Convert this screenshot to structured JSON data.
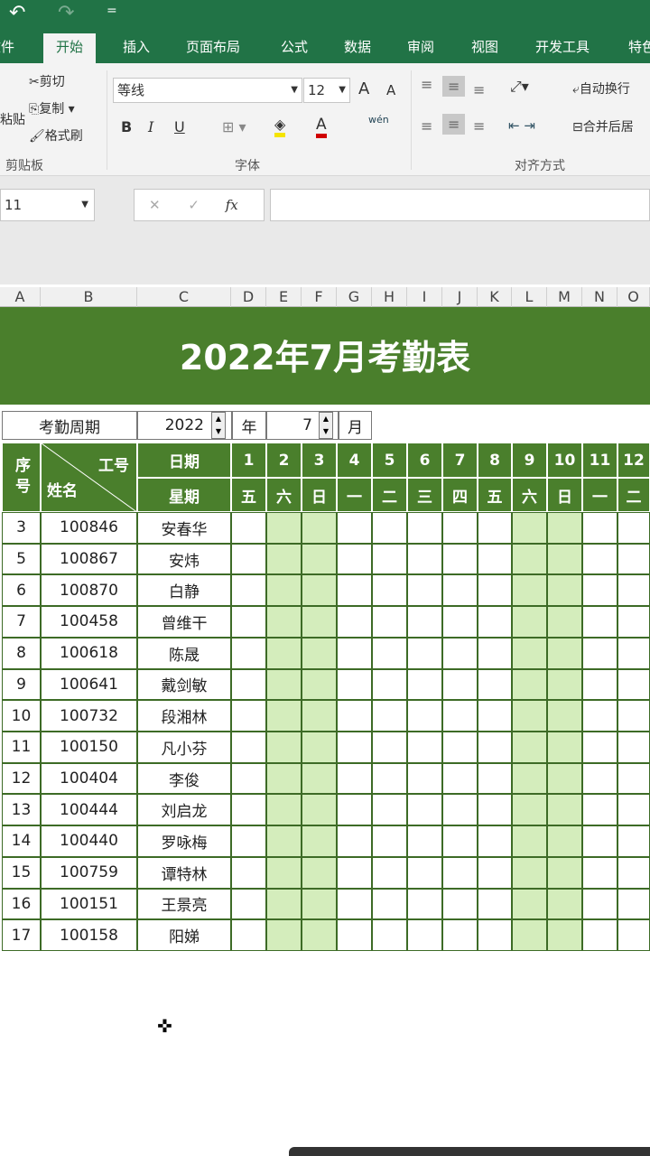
{
  "quick_access": {
    "undo": "↶",
    "redo": "↷",
    "customize": "="
  },
  "tabs": [
    "文件",
    "开始",
    "插入",
    "页面布局",
    "公式",
    "数据",
    "审阅",
    "视图",
    "开发工具",
    "特色"
  ],
  "ribbon": {
    "clipboard": {
      "paste": "粘贴",
      "cut": "剪切",
      "copy": "复制",
      "format_painter": "格式刷",
      "group": "剪贴板"
    },
    "font": {
      "name": "等线",
      "size": "12",
      "grow": "A",
      "shrink": "A",
      "bold": "B",
      "italic": "I",
      "underline": "U",
      "phonetic": "wén",
      "group": "字体",
      "fill_color": "#f5e400",
      "font_color": "#d00000"
    },
    "alignment": {
      "wrap": "自动换行",
      "merge": "合并后居",
      "group": "对齐方式"
    }
  },
  "formula_bar": {
    "name_box": "11",
    "cancel": "✕",
    "enter": "✓",
    "fx": "fx",
    "value": ""
  },
  "columns": [
    "A",
    "B",
    "C",
    "D",
    "E",
    "F",
    "G",
    "H",
    "I",
    "J",
    "K",
    "L",
    "M",
    "N",
    "O"
  ],
  "sheet": {
    "title": "2022年7月考勤表",
    "period_label": "考勤周期",
    "year": "2022",
    "year_unit": "年",
    "month": "7",
    "month_unit": "月",
    "hdr_seq": "序号",
    "hdr_id": "工号",
    "hdr_name": "姓名",
    "hdr_date": "日期",
    "hdr_week": "星期",
    "days": [
      "1",
      "2",
      "3",
      "4",
      "5",
      "6",
      "7",
      "8",
      "9",
      "10",
      "11",
      "12"
    ],
    "weekdays": [
      "五",
      "六",
      "日",
      "一",
      "二",
      "三",
      "四",
      "五",
      "六",
      "日",
      "一",
      "二"
    ],
    "weekend_days": [
      2,
      3,
      9,
      10
    ],
    "rows": [
      [
        "3",
        "100846",
        "安春华"
      ],
      [
        "5",
        "100867",
        "安炜"
      ],
      [
        "6",
        "100870",
        "白静"
      ],
      [
        "7",
        "100458",
        "曾维干"
      ],
      [
        "8",
        "100618",
        "陈晟"
      ],
      [
        "9",
        "100641",
        "戴剑敏"
      ],
      [
        "10",
        "100732",
        "段湘林"
      ],
      [
        "11",
        "100150",
        "凡小芬"
      ],
      [
        "12",
        "100404",
        "李俊"
      ],
      [
        "13",
        "100444",
        "刘启龙"
      ],
      [
        "14",
        "100440",
        "罗咏梅"
      ],
      [
        "15",
        "100759",
        "谭特林"
      ],
      [
        "16",
        "100151",
        "王景亮"
      ],
      [
        "17",
        "100158",
        "阳娣"
      ]
    ]
  },
  "colors": {
    "excel_green": "#217346",
    "header_green": "#4a7f2c",
    "weekend_fill": "#d4edbc"
  }
}
